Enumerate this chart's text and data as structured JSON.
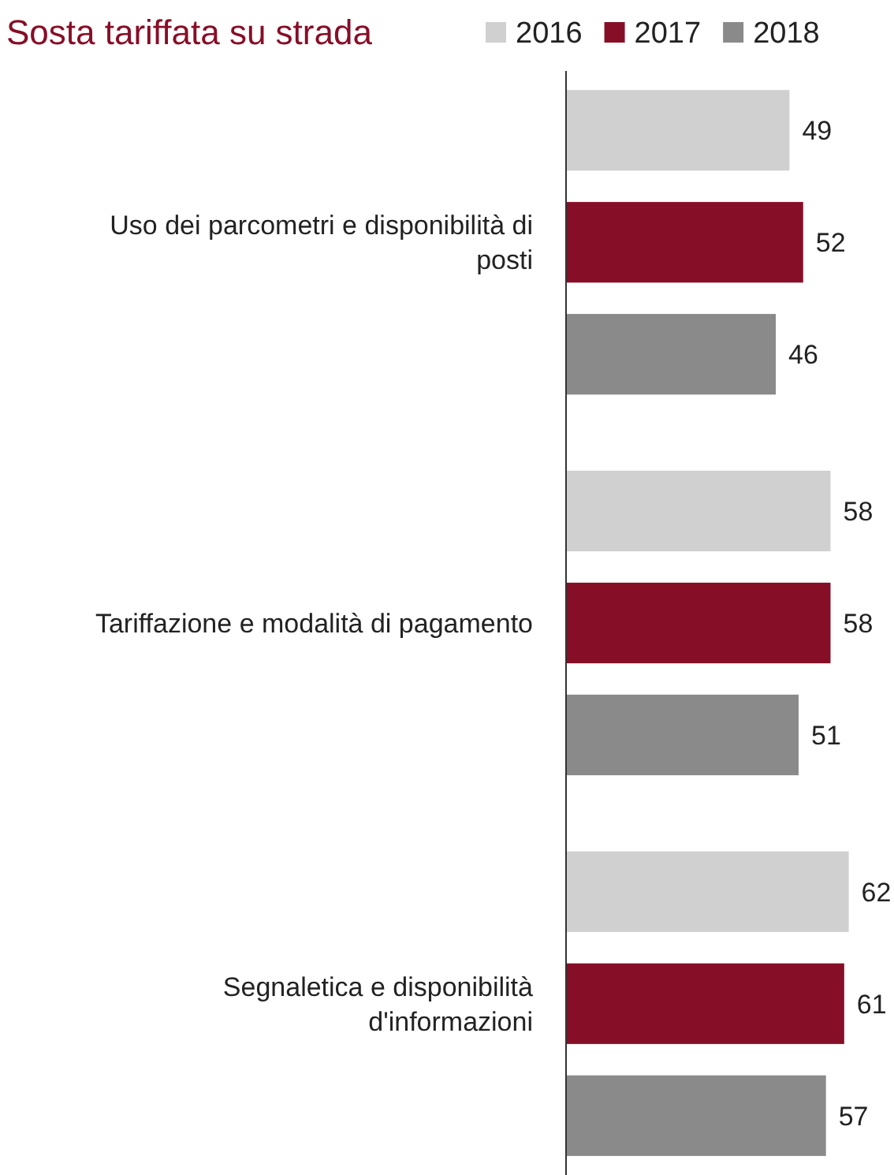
{
  "chart_data": {
    "type": "bar",
    "orientation": "horizontal",
    "title": "Sosta tariffata su strada",
    "categories": [
      "Uso dei parcometri e disponibilità di posti",
      "Tariffazione e modalità di pagamento",
      "Segnaletica e disponibilità d'informazioni"
    ],
    "series": [
      {
        "name": "2016",
        "color": "#d0d0d0",
        "values": [
          49,
          58,
          62
        ]
      },
      {
        "name": "2017",
        "color": "#870e27",
        "values": [
          52,
          58,
          61
        ]
      },
      {
        "name": "2018",
        "color": "#8a8a8a",
        "values": [
          46,
          51,
          57
        ]
      }
    ],
    "data_labels": true,
    "legend": "top",
    "tick_labels": "y"
  }
}
